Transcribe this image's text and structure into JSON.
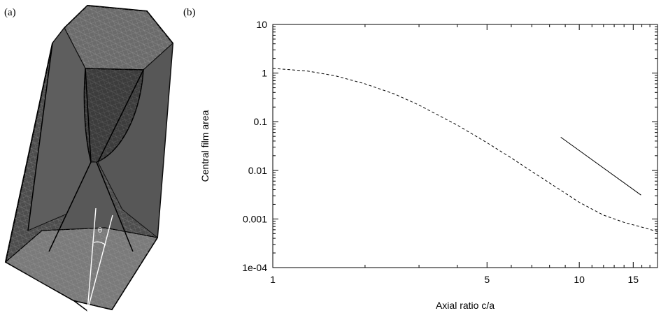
{
  "panel_a": {
    "label": "(a)",
    "angle_label": "θ"
  },
  "chart_data": {
    "type": "line",
    "panel_label": "(b)",
    "title": "",
    "xlabel": "Axial ratio c/a",
    "ylabel": "Central film area",
    "xscale": "log",
    "yscale": "log",
    "xlim": [
      1,
      18
    ],
    "ylim": [
      0.0001,
      10
    ],
    "x_ticks": [
      {
        "value": 1,
        "label": "1"
      },
      {
        "value": 5,
        "label": "5"
      },
      {
        "value": 10,
        "label": "10"
      },
      {
        "value": 15,
        "label": "15"
      }
    ],
    "y_ticks": [
      {
        "value": 10,
        "label": "10"
      },
      {
        "value": 1,
        "label": "1"
      },
      {
        "value": 0.1,
        "label": "0.1"
      },
      {
        "value": 0.01,
        "label": "0.01"
      },
      {
        "value": 0.001,
        "label": "0.001"
      },
      {
        "value": 0.0001,
        "label": "1e-04"
      }
    ],
    "grid": false,
    "legend": "none",
    "series": [
      {
        "style": "dashed",
        "x": [
          1,
          1.3,
          1.6,
          2,
          2.5,
          3,
          4,
          5,
          6,
          7,
          8,
          10,
          12,
          14,
          16,
          18
        ],
        "y": [
          1.25,
          1.1,
          0.88,
          0.6,
          0.37,
          0.22,
          0.085,
          0.037,
          0.018,
          0.0095,
          0.0055,
          0.0022,
          0.0012,
          0.00085,
          0.00068,
          0.00055
        ]
      },
      {
        "style": "solid",
        "x": [
          8.7,
          15.9
        ],
        "y": [
          0.048,
          0.0031
        ]
      }
    ]
  }
}
